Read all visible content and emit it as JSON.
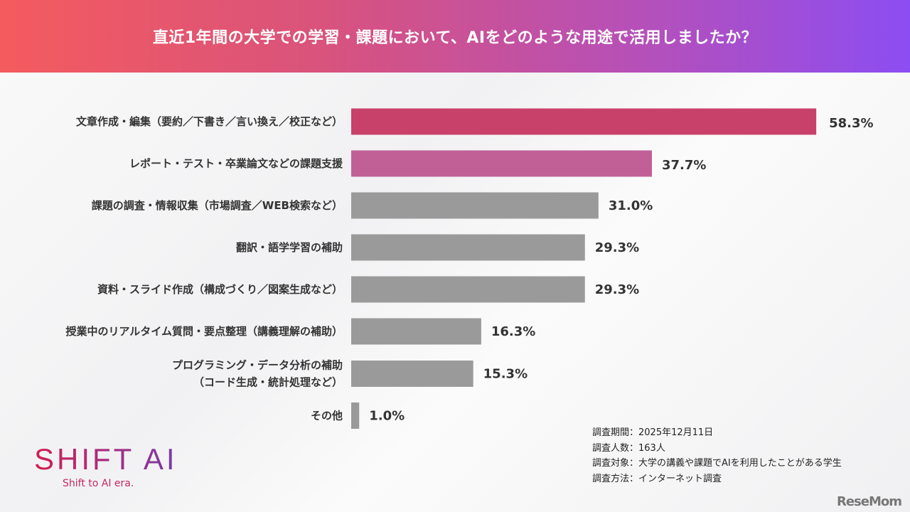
{
  "header": {
    "title": "直近1年間の大学での学習・課題において、AIをどのような用途で活用しましたか？"
  },
  "chart_data": {
    "type": "bar",
    "orientation": "horizontal",
    "categories": [
      "文章作成・編集（要約／下書き／言い換え／校正など）",
      "レポート・テスト・卒業論文などの課題支援",
      "課題の調査・情報収集（市場調査／WEB検索など）",
      "翻訳・語学学習の補助",
      "資料・スライド作成（構成づくり／図案生成など）",
      "授業中のリアルタイム質問・要点整理（講義理解の補助）",
      "プログラミング・データ分析の補助\n（コード生成・統計処理など）",
      "その他"
    ],
    "values": [
      58.3,
      37.7,
      31.0,
      29.3,
      29.3,
      16.3,
      15.3,
      1.0
    ],
    "value_labels": [
      "58.3%",
      "37.7%",
      "31.0%",
      "29.3%",
      "29.3%",
      "16.3%",
      "15.3%",
      "1.0%"
    ],
    "unit": "%",
    "colors": {
      "rank1": "#c8416a",
      "rank2": "#c06096",
      "other": "#9a9a9a",
      "highlight_text": "#a8205a",
      "text": "#333333"
    }
  },
  "notes": [
    "調査期間：2025年12月11日",
    "調査人数：163人",
    "調査対象：大学の講義や課題でAIを利用したことがある学生",
    "調査方法：インターネット調査"
  ],
  "logo": {
    "main": "SHIFT AI",
    "sub": "Shift to AI era."
  },
  "watermark": "ReseMom"
}
